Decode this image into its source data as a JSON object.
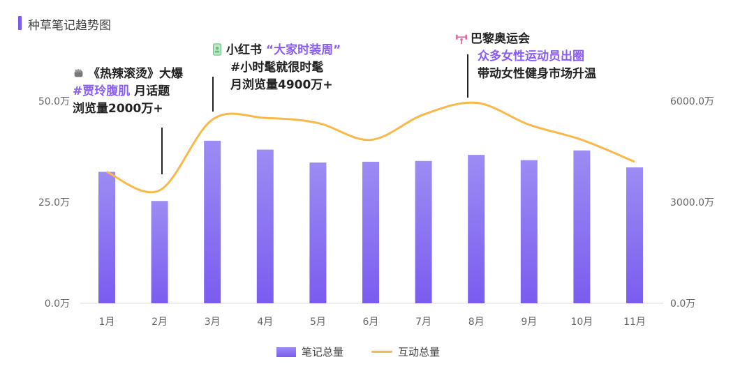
{
  "title": "种草笔记趋势图",
  "chart_data": {
    "type": "bar+line",
    "categories": [
      "1月",
      "2月",
      "3月",
      "4月",
      "5月",
      "6月",
      "7月",
      "8月",
      "9月",
      "10月",
      "11月"
    ],
    "series": [
      {
        "name": "笔记总量",
        "type": "bar",
        "axis": "left",
        "values": [
          32.5,
          25.3,
          40.2,
          38.0,
          34.8,
          35.0,
          35.2,
          36.7,
          35.4,
          37.8,
          33.6
        ]
      },
      {
        "name": "互动总量",
        "type": "line",
        "axis": "right",
        "values": [
          3900,
          3350,
          5450,
          5500,
          5350,
          4850,
          5600,
          5950,
          5300,
          4850,
          4200
        ]
      }
    ],
    "y_left": {
      "ticks": [
        "0.0万",
        "25.0万",
        "50.0万"
      ],
      "lim": [
        0,
        50
      ]
    },
    "y_right": {
      "ticks": [
        "0.0万",
        "3000.0万",
        "6000.0万"
      ],
      "lim": [
        0,
        6000
      ]
    },
    "colors": {
      "bar_top": "#9c8cf3",
      "bar_bottom": "#7b5cf0",
      "line": "#f9b94a"
    },
    "legend_position": "bottom-center"
  },
  "annotations": [
    {
      "month": "2月",
      "icon": "fist-icon",
      "lines": [
        "《热辣滚烫》大爆",
        "#贾玲腹肌",
        " 月话题",
        "浏览量2000万+"
      ]
    },
    {
      "month": "3月",
      "icon": "phone-icon",
      "lines": [
        "小红书 ",
        "“大家时装周”",
        "#小时髦就很时髦",
        "月浏览量4900万+"
      ]
    },
    {
      "month": "8月",
      "icon": "barbell-icon",
      "lines": [
        "巴黎奥运会",
        "众多女性运动员出圈",
        "带动女性健身市场升温"
      ]
    }
  ]
}
